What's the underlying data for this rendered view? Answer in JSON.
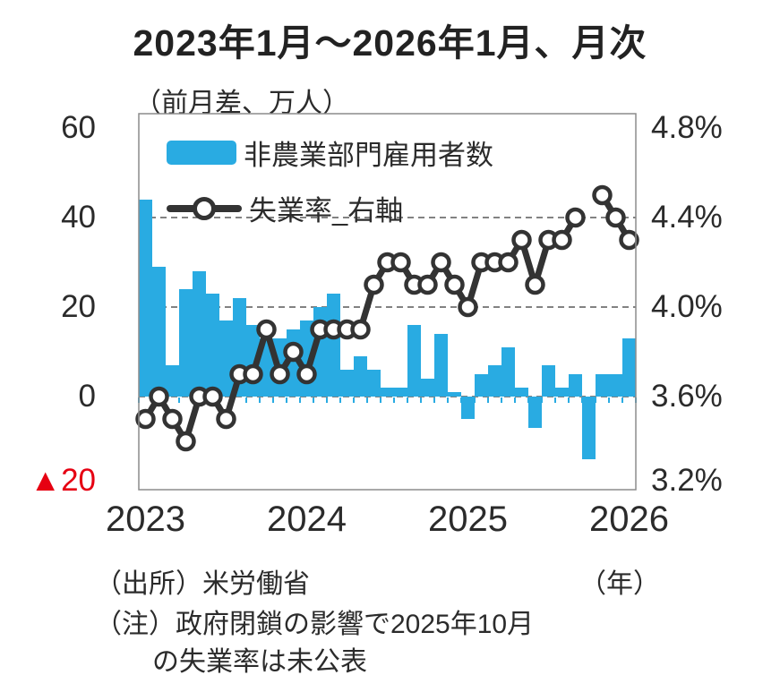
{
  "chart_data": {
    "type": "bar+line",
    "title": "2023年1月～2026年1月、月次",
    "unit_label": "（前月差、万人）",
    "months": [
      "2023-01",
      "2023-02",
      "2023-03",
      "2023-04",
      "2023-05",
      "2023-06",
      "2023-07",
      "2023-08",
      "2023-09",
      "2023-10",
      "2023-11",
      "2023-12",
      "2024-01",
      "2024-02",
      "2024-03",
      "2024-04",
      "2024-05",
      "2024-06",
      "2024-07",
      "2024-08",
      "2024-09",
      "2024-10",
      "2024-11",
      "2024-12",
      "2025-01",
      "2025-02",
      "2025-03",
      "2025-04",
      "2025-05",
      "2025-06",
      "2025-07",
      "2025-08",
      "2025-09",
      "2025-10",
      "2025-11",
      "2025-12",
      "2026-01"
    ],
    "series": [
      {
        "name": "非農業部門雇用者数",
        "type": "bar",
        "axis": "left",
        "color": "#29abe2",
        "values": [
          44,
          29,
          7,
          24,
          28,
          23,
          17,
          22,
          16,
          13,
          13,
          15,
          17,
          20,
          23,
          6,
          9,
          6,
          2,
          2,
          16,
          4,
          14,
          1,
          -5,
          5,
          7,
          11,
          2,
          -7,
          7,
          2,
          5,
          -14,
          5,
          5,
          13
        ]
      },
      {
        "name": "失業率_右軸",
        "type": "line",
        "axis": "right",
        "color": "#333333",
        "marker": "open-circle",
        "values": [
          3.5,
          3.6,
          3.5,
          3.4,
          3.6,
          3.6,
          3.5,
          3.7,
          3.7,
          3.9,
          3.7,
          3.8,
          3.7,
          3.9,
          3.9,
          3.9,
          3.9,
          4.1,
          4.2,
          4.2,
          4.1,
          4.1,
          4.2,
          4.1,
          4.0,
          4.2,
          4.2,
          4.2,
          4.3,
          4.1,
          4.3,
          4.3,
          4.4,
          null,
          4.5,
          4.4,
          4.3
        ]
      }
    ],
    "gap_months": [
      "2025-10"
    ],
    "left_axis": {
      "ticks": [
        {
          "label": "60",
          "value": 60
        },
        {
          "label": "40",
          "value": 40
        },
        {
          "label": "20",
          "value": 20
        },
        {
          "label": "0",
          "value": 0
        },
        {
          "label": "▲20",
          "value": -20
        }
      ],
      "range": [
        -21,
        63
      ],
      "negative_label_color": "#e60012"
    },
    "right_axis": {
      "ticks": [
        {
          "label": "4.8%",
          "value": 4.8
        },
        {
          "label": "4.4%",
          "value": 4.4
        },
        {
          "label": "4.0%",
          "value": 4.0
        },
        {
          "label": "3.6%",
          "value": 3.6
        },
        {
          "label": "3.2%",
          "value": 3.2
        }
      ],
      "range": [
        3.18,
        4.86
      ]
    },
    "x_axis": {
      "ticks": [
        {
          "label": "2023",
          "month_index": 0
        },
        {
          "label": "2024",
          "month_index": 12
        },
        {
          "label": "2025",
          "month_index": 24
        },
        {
          "label": "2026",
          "month_index": 36
        }
      ],
      "unit_label": "（年）"
    },
    "legend": {
      "position": "top-left-inside",
      "items": [
        "非農業部門雇用者数",
        "失業率_右軸"
      ]
    },
    "grid": {
      "horizontal_dashed_at_left_values": [
        40,
        20,
        0
      ]
    },
    "colors": {
      "bar": "#29abe2",
      "line": "#333333",
      "marker_fill": "#ffffff",
      "grid": "#595959",
      "border": "#8c8c8c",
      "negative": "#e60012",
      "month_tick": "#29abe2"
    }
  },
  "footer": {
    "source": "（出所）米労働省",
    "x_axis_unit": "（年）",
    "note_line1": "（注）政府閉鎖の影響で2025年10月",
    "note_line2": "の失業率は未公表"
  }
}
